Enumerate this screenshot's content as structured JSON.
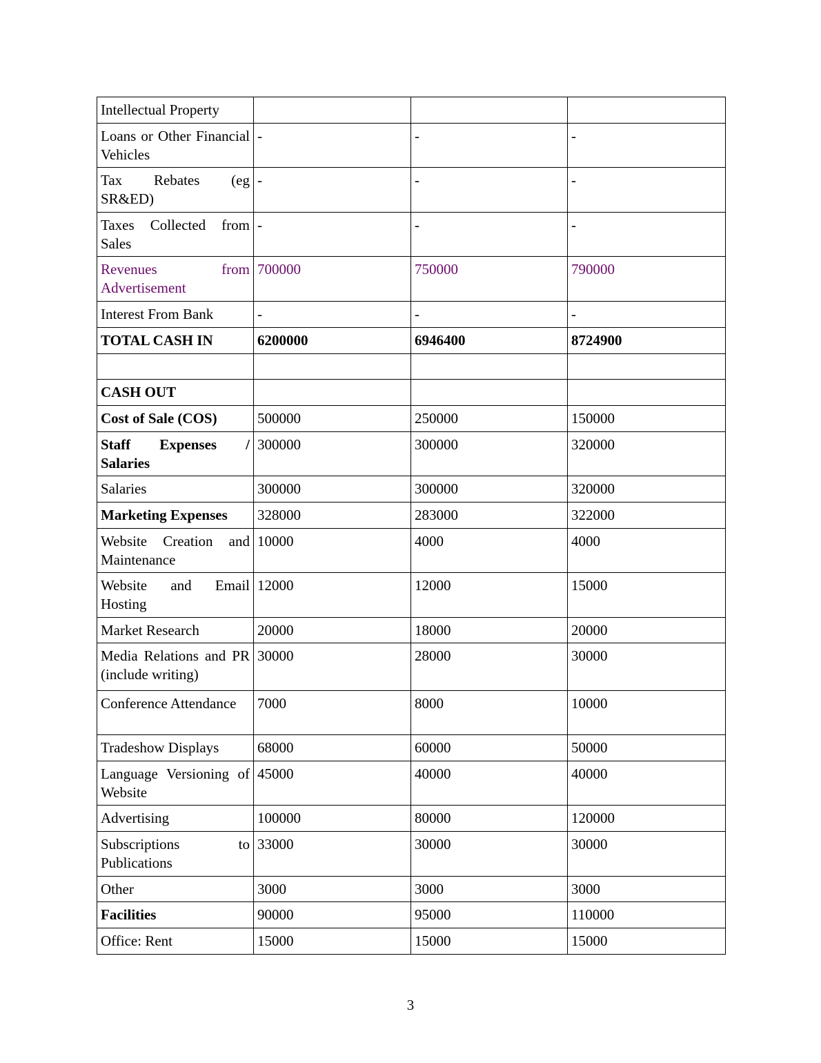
{
  "colors": {
    "highlight": "#6a0a6a"
  },
  "table": {
    "rows": [
      {
        "label": "Intellectual Property",
        "values": [
          "",
          "",
          ""
        ],
        "bold": false
      },
      {
        "label": "Loans or Other Financial Vehicles",
        "values": [
          "-",
          "-",
          "-"
        ],
        "bold": false
      },
      {
        "label": "Tax Rebates (eg SR&ED)",
        "values": [
          "-",
          "-",
          "-"
        ],
        "bold": false
      },
      {
        "label": "Taxes Collected from Sales",
        "values": [
          "-",
          "-",
          "-"
        ],
        "bold": false
      },
      {
        "label": "Revenues from Advertisement",
        "values": [
          "700000",
          "750000",
          "790000"
        ],
        "bold": false,
        "highlight": true
      },
      {
        "label": "Interest From Bank",
        "values": [
          "-",
          "-",
          "-"
        ],
        "bold": false
      },
      {
        "label": "TOTAL CASH IN",
        "values": [
          "6200000",
          "6946400",
          "8724900"
        ],
        "bold": true
      },
      {
        "label": "",
        "values": [
          "",
          "",
          ""
        ],
        "bold": false
      },
      {
        "label": "CASH OUT",
        "values": [
          "",
          "",
          ""
        ],
        "bold": true
      },
      {
        "label": "Cost of Sale (COS)",
        "values": [
          "500000",
          "250000",
          "150000"
        ],
        "bold": true,
        "boldLabelOnly": true
      },
      {
        "label": "Staff Expenses / Salaries",
        "values": [
          "300000",
          "300000",
          "320000"
        ],
        "bold": true,
        "boldLabelOnly": true
      },
      {
        "label": "Salaries",
        "values": [
          "300000",
          "300000",
          "320000"
        ],
        "bold": false
      },
      {
        "label": "Marketing Expenses",
        "values": [
          "328000",
          "283000",
          "322000"
        ],
        "bold": true,
        "boldLabelOnly": true
      },
      {
        "label": "Website Creation and Maintenance",
        "values": [
          "10000",
          "4000",
          "4000"
        ],
        "bold": false
      },
      {
        "label": "Website and Email Hosting",
        "values": [
          "12000",
          "12000",
          "15000"
        ],
        "bold": false
      },
      {
        "label": "Market Research",
        "values": [
          "20000",
          "18000",
          "20000"
        ],
        "bold": false
      },
      {
        "label": "Media Relations and PR (include writing)",
        "values": [
          "30000",
          "28000",
          "30000"
        ],
        "bold": false
      },
      {
        "label": "Conference Attendance",
        "values": [
          "7000",
          "8000",
          "10000"
        ],
        "bold": false,
        "noJustify": true
      },
      {
        "label": "Tradeshow Displays",
        "values": [
          "68000",
          "60000",
          "50000"
        ],
        "bold": false
      },
      {
        "label": "Language Versioning of Website",
        "values": [
          "45000",
          "40000",
          "40000"
        ],
        "bold": false
      },
      {
        "label": "Advertising",
        "values": [
          "100000",
          "80000",
          "120000"
        ],
        "bold": false
      },
      {
        "label": "Subscriptions to Publications",
        "values": [
          "33000",
          "30000",
          "30000"
        ],
        "bold": false
      },
      {
        "label": "Other",
        "values": [
          "3000",
          "3000",
          "3000"
        ],
        "bold": false
      },
      {
        "label": "Facilities",
        "values": [
          "90000",
          "95000",
          "110000"
        ],
        "bold": true,
        "boldLabelOnly": true
      },
      {
        "label": "Office: Rent",
        "values": [
          "15000",
          "15000",
          "15000"
        ],
        "bold": false
      }
    ]
  },
  "footer": {
    "page_number": "3"
  }
}
